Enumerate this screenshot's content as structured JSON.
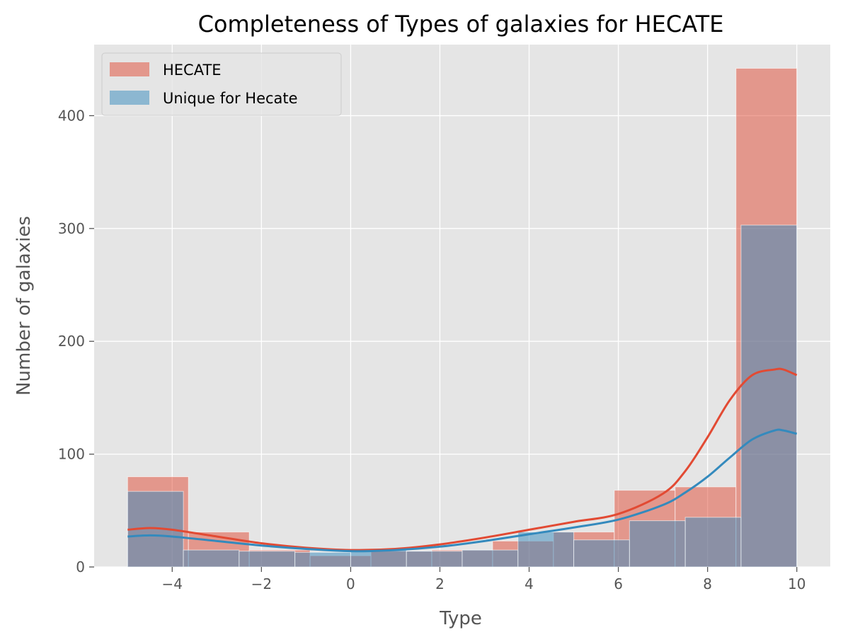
{
  "chart_data": {
    "type": "bar",
    "title": "Completeness of Types of galaxies for HECATE",
    "xlabel": "Type",
    "ylabel": "Number of galaxies",
    "xlim": [
      -5.75,
      10.75
    ],
    "ylim": [
      0,
      463
    ],
    "xticks": [
      -4,
      -2,
      0,
      2,
      4,
      6,
      8,
      10
    ],
    "xtick_labels": [
      "−4",
      "−2",
      "0",
      "2",
      "4",
      "6",
      "8",
      "10"
    ],
    "yticks": [
      0,
      100,
      200,
      300,
      400
    ],
    "ytick_labels": [
      "0",
      "100",
      "200",
      "300",
      "400"
    ],
    "grid": true,
    "style": "ggplot",
    "legend_placement": "top-left",
    "series": [
      {
        "name": "HECATE",
        "color": "#E24A33",
        "bin_edges": [
          -5,
          -3.6364,
          -2.2727,
          -0.9091,
          0.4545,
          1.8182,
          3.1818,
          4.5455,
          5.9091,
          7.2727,
          8.6364,
          10
        ],
        "values": [
          80,
          31,
          15,
          10,
          14,
          15,
          23,
          31,
          68,
          71,
          442
        ],
        "kde_x": [
          -5,
          -4.5,
          -4,
          -3,
          -2,
          -1,
          0,
          1,
          2,
          3,
          4,
          5,
          6,
          7,
          7.5,
          8,
          8.5,
          9,
          9.5,
          9.7,
          10
        ],
        "kde_y": [
          33,
          34.5,
          33,
          27,
          21,
          17,
          15,
          16,
          20,
          26,
          33,
          40,
          47,
          65,
          85,
          115,
          148,
          170,
          175,
          175,
          170
        ]
      },
      {
        "name": "Unique for Hecate",
        "color": "#348ABD",
        "bin_edges": [
          -5,
          -3.75,
          -2.5,
          -1.25,
          0,
          1.25,
          2.5,
          3.75,
          5,
          6.25,
          7.5,
          8.75,
          10
        ],
        "values": [
          67,
          15,
          14,
          13,
          15,
          14,
          15,
          31,
          24,
          41,
          44,
          303
        ],
        "kde_x": [
          -5,
          -4.5,
          -4,
          -3,
          -2,
          -1,
          0,
          1,
          2,
          3,
          4,
          5,
          6,
          7,
          7.5,
          8,
          8.5,
          9,
          9.5,
          9.7,
          10
        ],
        "kde_y": [
          27,
          28,
          27,
          23,
          19,
          16,
          14,
          15,
          18,
          23,
          29,
          35,
          42,
          55,
          66,
          80,
          97,
          113,
          121,
          121,
          118
        ]
      }
    ]
  }
}
